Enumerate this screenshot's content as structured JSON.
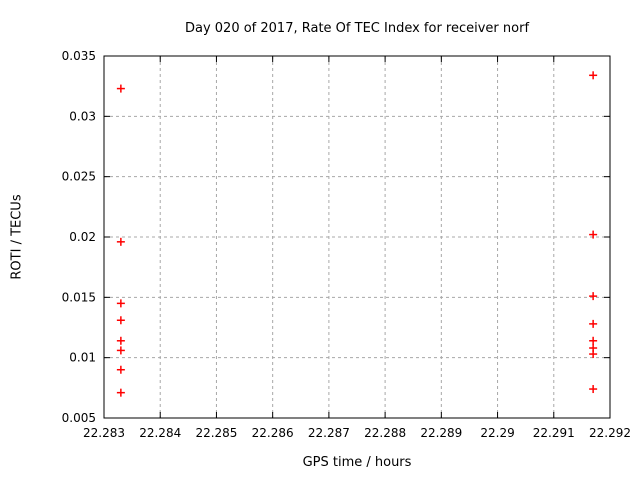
{
  "title": "Day 020 of 2017, Rate Of TEC Index for receiver norf",
  "colors": {
    "background": "#ffffff",
    "border": "#000000",
    "grid": "#a8a8a8",
    "marker": "#ff0000",
    "text": "#000000"
  },
  "chart_data": {
    "type": "scatter",
    "title": "Day 020 of 2017, Rate Of TEC Index for receiver norf",
    "xlabel": "GPS time / hours",
    "ylabel": "ROTI / TECUs",
    "xlim": [
      22.283,
      22.292
    ],
    "ylim": [
      0.005,
      0.035
    ],
    "x_ticks": [
      {
        "v": 22.283,
        "label": "22.283"
      },
      {
        "v": 22.284,
        "label": "22.284"
      },
      {
        "v": 22.285,
        "label": "22.285"
      },
      {
        "v": 22.286,
        "label": "22.286"
      },
      {
        "v": 22.287,
        "label": "22.287"
      },
      {
        "v": 22.288,
        "label": "22.288"
      },
      {
        "v": 22.289,
        "label": "22.289"
      },
      {
        "v": 22.29,
        "label": "22.29"
      },
      {
        "v": 22.291,
        "label": "22.291"
      },
      {
        "v": 22.292,
        "label": "22.292"
      }
    ],
    "y_ticks": [
      {
        "v": 0.005,
        "label": "0.005"
      },
      {
        "v": 0.01,
        "label": "0.01"
      },
      {
        "v": 0.015,
        "label": "0.015"
      },
      {
        "v": 0.02,
        "label": "0.02"
      },
      {
        "v": 0.025,
        "label": "0.025"
      },
      {
        "v": 0.03,
        "label": "0.03"
      },
      {
        "v": 0.035,
        "label": "0.035"
      }
    ],
    "grid": true,
    "legend": "none",
    "marker": {
      "shape": "plus",
      "color": "#ff0000",
      "half_size": 4,
      "stroke_width": 1.5
    },
    "series": [
      {
        "name": "ROTI",
        "color": "#ff0000",
        "points": [
          [
            22.2833,
            0.0323
          ],
          [
            22.2833,
            0.0196
          ],
          [
            22.2833,
            0.0145
          ],
          [
            22.2833,
            0.0131
          ],
          [
            22.2833,
            0.0114
          ],
          [
            22.2833,
            0.0106
          ],
          [
            22.2833,
            0.009
          ],
          [
            22.2833,
            0.0071
          ],
          [
            22.2917,
            0.0334
          ],
          [
            22.2917,
            0.0202
          ],
          [
            22.2917,
            0.0151
          ],
          [
            22.2917,
            0.0128
          ],
          [
            22.2917,
            0.0114
          ],
          [
            22.2917,
            0.0108
          ],
          [
            22.2917,
            0.0103
          ],
          [
            22.2917,
            0.0074
          ]
        ]
      }
    ]
  }
}
